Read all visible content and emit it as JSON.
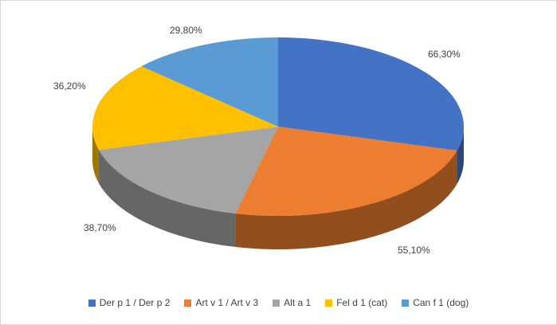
{
  "chart_data": {
    "type": "pie",
    "style": "3d",
    "title": "",
    "labels": [
      "Der p 1 / Der p 2",
      "Art v 1 / Art v 3",
      "Alt a 1",
      "Fel d 1 (cat)",
      "Can f 1 (dog)"
    ],
    "values": [
      66.3,
      55.1,
      38.7,
      36.2,
      29.8
    ],
    "data_labels": [
      "66,30%",
      "55,10%",
      "38,70%",
      "36,20%",
      "29,80%"
    ],
    "colors": [
      "#4472C4",
      "#ED7D31",
      "#A5A5A5",
      "#FFC000",
      "#5B9BD5"
    ],
    "legend_position": "bottom",
    "data_label_format": "percent-comma-decimal",
    "start_angle_deg": 0,
    "direction": "clockwise"
  }
}
